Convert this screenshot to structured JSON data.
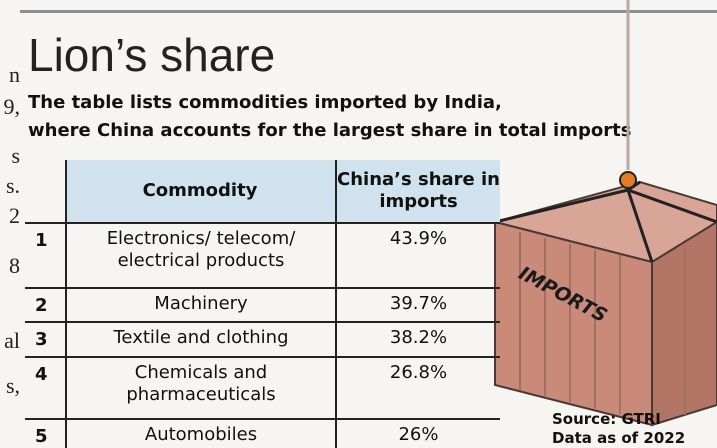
{
  "margin_fragments": [
    "n",
    "9,",
    "s",
    "s.",
    "2",
    "8",
    "al",
    "s,"
  ],
  "header": {
    "title": "Lion’s share",
    "subtitle_plain": "The table lists commodities imported by India,",
    "subtitle_bold": "where China accounts for the largest share in total imports"
  },
  "table": {
    "columns": [
      "Commodity",
      "China’s share in imports"
    ],
    "rows": [
      [
        "1",
        "Electronics/ telecom/ electrical products",
        "43.9%"
      ],
      [
        "2",
        "Machinery",
        "39.7%"
      ],
      [
        "3",
        "Textile and clothing",
        "38.2%"
      ],
      [
        "4",
        "Chemicals and pharmaceuticals",
        "26.8%"
      ],
      [
        "5",
        "Automobiles",
        "26%"
      ]
    ]
  },
  "illustration": {
    "label": "IMPORTS"
  },
  "footer": {
    "source": "Source: GTRI",
    "note": "Data as of 2022"
  }
}
